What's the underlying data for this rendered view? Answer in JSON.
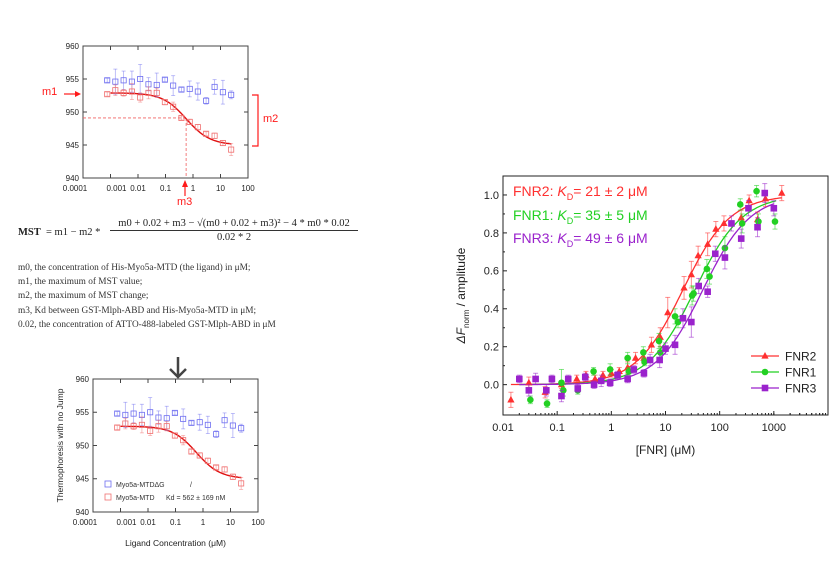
{
  "top_chart_annotations": {
    "m1": "m1",
    "m2": "m2",
    "m3": "m3"
  },
  "formula": {
    "lhs": "MST",
    "middle": "= m1 − m2 *",
    "numerator": "m0 + 0.02 + m3 − √(m0 + 0.02 + m3)² − 4 * m0 * 0.02",
    "denominator": "0.02 * 2"
  },
  "definitions": [
    "m0, the concentration of His-Myo5a-MTD (the ligand) in μM;",
    "m1, the maximum of MST value;",
    "m2, the maximum of MST change;",
    "m3, Kd between GST-Mlph-ABD and His-Myo5a-MTD in μM;",
    "0.02, the concentration of ATTO-488-labeled GST-Mlph-ABD in μM"
  ],
  "arrow_icon": "down-arrow",
  "kd_labels": [
    {
      "name": "FNR2",
      "kd": "21 ± 2 μM",
      "color": "#ff3030"
    },
    {
      "name": "FNR1",
      "kd": "35 ± 5 μM",
      "color": "#22d022"
    },
    {
      "name": "FNR3",
      "kd": "49 ± 6 μM",
      "color": "#9a22cc"
    }
  ],
  "chart_data": [
    {
      "type": "scatter",
      "title": "",
      "xlabel": "",
      "ylabel": "",
      "xscale": "log",
      "xlim": [
        0.0001,
        100
      ],
      "ylim": [
        940,
        960
      ],
      "xticks": [
        "0.0001",
        "0.001",
        "0.01",
        "0.1",
        "1",
        "10",
        "100"
      ],
      "yticks": [
        "940",
        "945",
        "950",
        "955",
        "960"
      ],
      "grid": false,
      "series": [
        {
          "color": "#6e6ef0",
          "marker": "open-square",
          "x": [
            0.00076,
            0.0015,
            0.003,
            0.006,
            0.012,
            0.024,
            0.048,
            0.095,
            0.19,
            0.38,
            0.76,
            1.5,
            3.0,
            6.1,
            12.2,
            24.4
          ],
          "y": [
            954.8,
            954.6,
            954.8,
            954.6,
            955.0,
            954.2,
            954.1,
            954.9,
            954.0,
            953.4,
            953.5,
            953.1,
            951.7,
            953.8,
            953.0,
            952.6
          ],
          "err": [
            0.3,
            1.9,
            1.4,
            1.6,
            2.2,
            1.0,
            1.8,
            0.3,
            1.5,
            0.3,
            1.2,
            1.3,
            0.5,
            1.1,
            1.8,
            0.6
          ]
        },
        {
          "color": "#f07070",
          "marker": "open-square",
          "x": [
            0.00076,
            0.0015,
            0.003,
            0.006,
            0.012,
            0.024,
            0.048,
            0.095,
            0.19,
            0.38,
            0.76,
            1.5,
            3.0,
            6.1,
            12.2,
            24.4
          ],
          "y": [
            952.7,
            953.3,
            952.9,
            953.1,
            952.2,
            952.9,
            952.9,
            951.5,
            950.8,
            949.1,
            948.5,
            947.7,
            946.7,
            946.4,
            945.3,
            944.3
          ],
          "err": [
            0.3,
            0.8,
            0.5,
            1.2,
            0.7,
            0.9,
            0.7,
            0.4,
            0.7,
            0.3,
            0.4,
            0.4,
            0.3,
            0.4,
            0.4,
            0.9
          ],
          "fit": {
            "m1": 952.9,
            "m2": 7.9,
            "m3": 0.562,
            "labeled_conc": 0.02,
            "xrange": [
              0.001,
              25
            ],
            "color": "#e01010"
          }
        }
      ],
      "guides": {
        "y": 949.1,
        "x": 0.562
      }
    },
    {
      "type": "scatter",
      "title": "",
      "xlabel": "Ligand Concentration (μM)",
      "ylabel": "Thermophoresis with no Jump",
      "xscale": "log",
      "xlim": [
        0.0001,
        100
      ],
      "ylim": [
        940,
        960
      ],
      "xticks": [
        "0.0001",
        "0.001",
        "0.01",
        "0.1",
        "1",
        "10",
        "100"
      ],
      "yticks": [
        "940",
        "945",
        "950",
        "955",
        "960"
      ],
      "grid": false,
      "legend": {
        "placement": "bottom-left",
        "entries": [
          {
            "label": "Myo5a-MTDΔG",
            "extra": "/",
            "color": "#6e6ef0"
          },
          {
            "label": "Myo5a-MTD",
            "extra": "Kd = 562 ± 169 nM",
            "color": "#f07070"
          }
        ]
      },
      "series": [
        {
          "name": "Myo5a-MTDΔG",
          "color": "#6e6ef0",
          "marker": "open-square",
          "x": [
            0.00076,
            0.0015,
            0.003,
            0.006,
            0.012,
            0.024,
            0.048,
            0.095,
            0.19,
            0.38,
            0.76,
            1.5,
            3.0,
            6.1,
            12.2,
            24.4
          ],
          "y": [
            954.8,
            954.6,
            954.8,
            954.6,
            955.0,
            954.2,
            954.1,
            954.9,
            954.0,
            953.4,
            953.5,
            953.1,
            951.7,
            953.8,
            953.0,
            952.6
          ],
          "err": [
            0.3,
            1.9,
            1.4,
            1.6,
            2.2,
            1.0,
            1.8,
            0.3,
            1.5,
            0.3,
            1.2,
            1.3,
            0.5,
            1.1,
            1.8,
            0.6
          ]
        },
        {
          "name": "Myo5a-MTD",
          "color": "#f07070",
          "marker": "open-square",
          "x": [
            0.00076,
            0.0015,
            0.003,
            0.006,
            0.012,
            0.024,
            0.048,
            0.095,
            0.19,
            0.38,
            0.76,
            1.5,
            3.0,
            6.1,
            12.2,
            24.4
          ],
          "y": [
            952.7,
            953.3,
            952.9,
            953.1,
            952.2,
            952.9,
            952.9,
            951.5,
            950.8,
            949.1,
            948.5,
            947.7,
            946.7,
            946.4,
            945.3,
            944.3
          ],
          "err": [
            0.3,
            0.8,
            0.5,
            1.2,
            0.7,
            0.9,
            0.7,
            0.4,
            0.7,
            0.3,
            0.4,
            0.4,
            0.3,
            0.4,
            0.4,
            0.9
          ],
          "fit": {
            "m1": 952.9,
            "m2": 7.9,
            "m3": 0.562,
            "labeled_conc": 0.02,
            "xrange": [
              0.001,
              25
            ],
            "color": "#e01010"
          }
        }
      ]
    },
    {
      "type": "scatter",
      "title": "",
      "xlabel": "[FNR] (μM)",
      "ylabel_main": "ΔF",
      "ylabel_sub": "norm",
      "ylabel_rest": " / amplitude",
      "xscale": "log",
      "xlim": [
        0.01,
        10000
      ],
      "ylim": [
        -0.16,
        1.1
      ],
      "xticks": [
        "0.01",
        "0.1",
        "1",
        "10",
        "100",
        "1000"
      ],
      "yticks": [
        "0.0",
        "0.2",
        "0.4",
        "0.6",
        "0.8",
        "1.0"
      ],
      "grid": false,
      "legend": {
        "placement": "bottom-right",
        "entries": [
          {
            "label": "FNR2",
            "color": "#ff3030",
            "marker": "triangle"
          },
          {
            "label": "FNR1",
            "color": "#22d022",
            "marker": "circle"
          },
          {
            "label": "FNR3",
            "color": "#9a22cc",
            "marker": "square"
          }
        ]
      },
      "series": [
        {
          "name": "FNR2",
          "color": "#ff3030",
          "marker": "triangle",
          "x": [
            0.014,
            0.03,
            0.06,
            0.12,
            0.23,
            0.34,
            0.5,
            0.7,
            1.0,
            1.4,
            2.0,
            2.8,
            4.0,
            5.5,
            8,
            11,
            22,
            30,
            40,
            60,
            85,
            120,
            250,
            350,
            500,
            700,
            1400
          ],
          "y": [
            -0.08,
            0.01,
            -0.04,
            0.0,
            0.03,
            0.05,
            0.03,
            0.05,
            0.06,
            0.07,
            0.09,
            0.14,
            0.14,
            0.21,
            0.25,
            0.38,
            0.51,
            0.58,
            0.68,
            0.74,
            0.82,
            0.85,
            0.88,
            0.97,
            0.87,
            0.98,
            1.01
          ],
          "err": [
            0.04,
            0.03,
            0.03,
            0.02,
            0.02,
            0.02,
            0.02,
            0.02,
            0.02,
            0.02,
            0.03,
            0.03,
            0.03,
            0.04,
            0.05,
            0.08,
            0.06,
            0.07,
            0.05,
            0.06,
            0.04,
            0.04,
            0.04,
            0.03,
            0.04,
            0.04,
            0.04
          ],
          "fit": {
            "kd": 21,
            "xrange": [
              0.014,
              1400
            ]
          }
        },
        {
          "name": "FNR1",
          "color": "#22d022",
          "marker": "circle",
          "x": [
            0.032,
            0.065,
            0.12,
            0.13,
            0.24,
            0.47,
            0.95,
            2.0,
            2.1,
            3.9,
            4.1,
            7.6,
            8,
            15,
            17,
            31,
            33,
            58,
            65,
            125,
            240,
            260,
            480,
            520,
            1050
          ],
          "y": [
            -0.08,
            -0.1,
            0.01,
            -0.03,
            -0.03,
            0.07,
            0.08,
            0.14,
            0.07,
            0.17,
            0.12,
            0.23,
            0.17,
            0.36,
            0.33,
            0.47,
            0.48,
            0.61,
            0.57,
            0.72,
            0.95,
            0.85,
            1.02,
            0.86,
            0.86
          ],
          "err": [
            0.02,
            0.02,
            0.07,
            0.03,
            0.02,
            0.02,
            0.03,
            0.03,
            0.02,
            0.03,
            0.02,
            0.04,
            0.03,
            0.04,
            0.03,
            0.05,
            0.04,
            0.05,
            0.04,
            0.06,
            0.03,
            0.05,
            0.03,
            0.04,
            0.04
          ],
          "fit": {
            "kd": 35,
            "xrange": [
              0.02,
              1100
            ]
          }
        },
        {
          "name": "FNR3",
          "color": "#9a22cc",
          "marker": "square",
          "x": [
            0.02,
            0.03,
            0.04,
            0.063,
            0.08,
            0.12,
            0.16,
            0.24,
            0.33,
            0.48,
            0.65,
            0.95,
            1.3,
            2.0,
            2.6,
            4.0,
            5.2,
            7.8,
            10,
            15,
            21,
            30,
            41,
            60,
            83,
            125,
            165,
            250,
            340,
            500,
            680,
            1000
          ],
          "y": [
            0.03,
            -0.03,
            0.03,
            -0.03,
            0.03,
            -0.06,
            0.03,
            -0.02,
            0.04,
            0.0,
            0.02,
            0.01,
            0.05,
            0.03,
            0.08,
            0.06,
            0.13,
            0.13,
            0.19,
            0.21,
            0.35,
            0.33,
            0.52,
            0.49,
            0.69,
            0.67,
            0.85,
            0.77,
            0.93,
            0.83,
            1.01,
            0.93
          ],
          "err": [
            0.02,
            0.03,
            0.03,
            0.03,
            0.02,
            0.03,
            0.02,
            0.02,
            0.02,
            0.02,
            0.03,
            0.02,
            0.02,
            0.02,
            0.02,
            0.02,
            0.03,
            0.04,
            0.03,
            0.05,
            0.05,
            0.08,
            0.04,
            0.03,
            0.04,
            0.06,
            0.04,
            0.05,
            0.04,
            0.05,
            0.05,
            0.04
          ],
          "fit": {
            "kd": 49,
            "xrange": [
              0.02,
              1000
            ]
          }
        }
      ]
    }
  ]
}
